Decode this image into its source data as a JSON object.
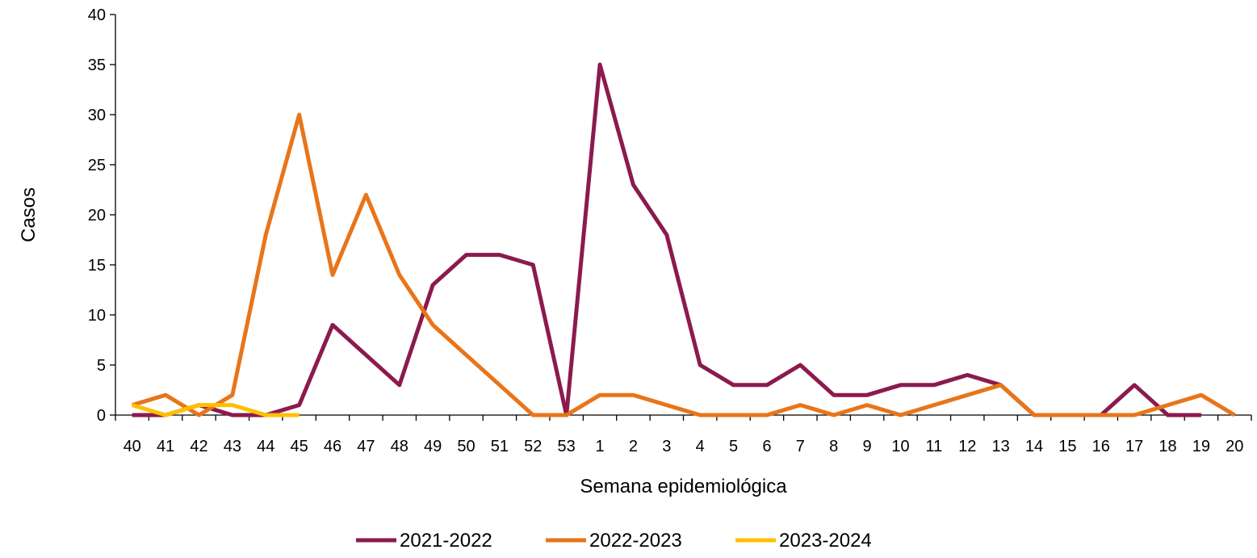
{
  "chart_data": {
    "type": "line",
    "title": "",
    "xlabel": "Semana epidemiológica",
    "ylabel": "Casos",
    "ylim": [
      0,
      40
    ],
    "yticks": [
      0,
      5,
      10,
      15,
      20,
      25,
      30,
      35,
      40
    ],
    "grid": false,
    "legend_position": "bottom",
    "categories": [
      "40",
      "41",
      "42",
      "43",
      "44",
      "45",
      "46",
      "47",
      "48",
      "49",
      "50",
      "51",
      "52",
      "53",
      "1",
      "2",
      "3",
      "4",
      "5",
      "6",
      "7",
      "8",
      "9",
      "10",
      "11",
      "12",
      "13",
      "14",
      "15",
      "16",
      "17",
      "18",
      "19",
      "20"
    ],
    "series": [
      {
        "name": "2021-2022",
        "color": "#8B1A4F",
        "values": [
          0,
          0,
          1,
          0,
          0,
          1,
          9,
          6,
          3,
          13,
          16,
          16,
          15,
          0,
          35,
          23,
          18,
          5,
          3,
          3,
          5,
          2,
          2,
          3,
          3,
          4,
          3,
          0,
          0,
          0,
          3,
          0,
          0,
          null
        ]
      },
      {
        "name": "2022-2023",
        "color": "#E8751A",
        "values": [
          1,
          2,
          0,
          2,
          18,
          30,
          14,
          22,
          14,
          9,
          6,
          3,
          0,
          0,
          2,
          2,
          1,
          0,
          0,
          0,
          1,
          0,
          1,
          0,
          1,
          2,
          3,
          0,
          0,
          0,
          0,
          1,
          2,
          0
        ]
      },
      {
        "name": "2023-2024",
        "color": "#FFC000",
        "values": [
          1,
          0,
          1,
          1,
          0,
          0,
          null,
          null,
          null,
          null,
          null,
          null,
          null,
          null,
          null,
          null,
          null,
          null,
          null,
          null,
          null,
          null,
          null,
          null,
          null,
          null,
          null,
          null,
          null,
          null,
          null,
          null,
          null,
          null
        ]
      }
    ]
  }
}
